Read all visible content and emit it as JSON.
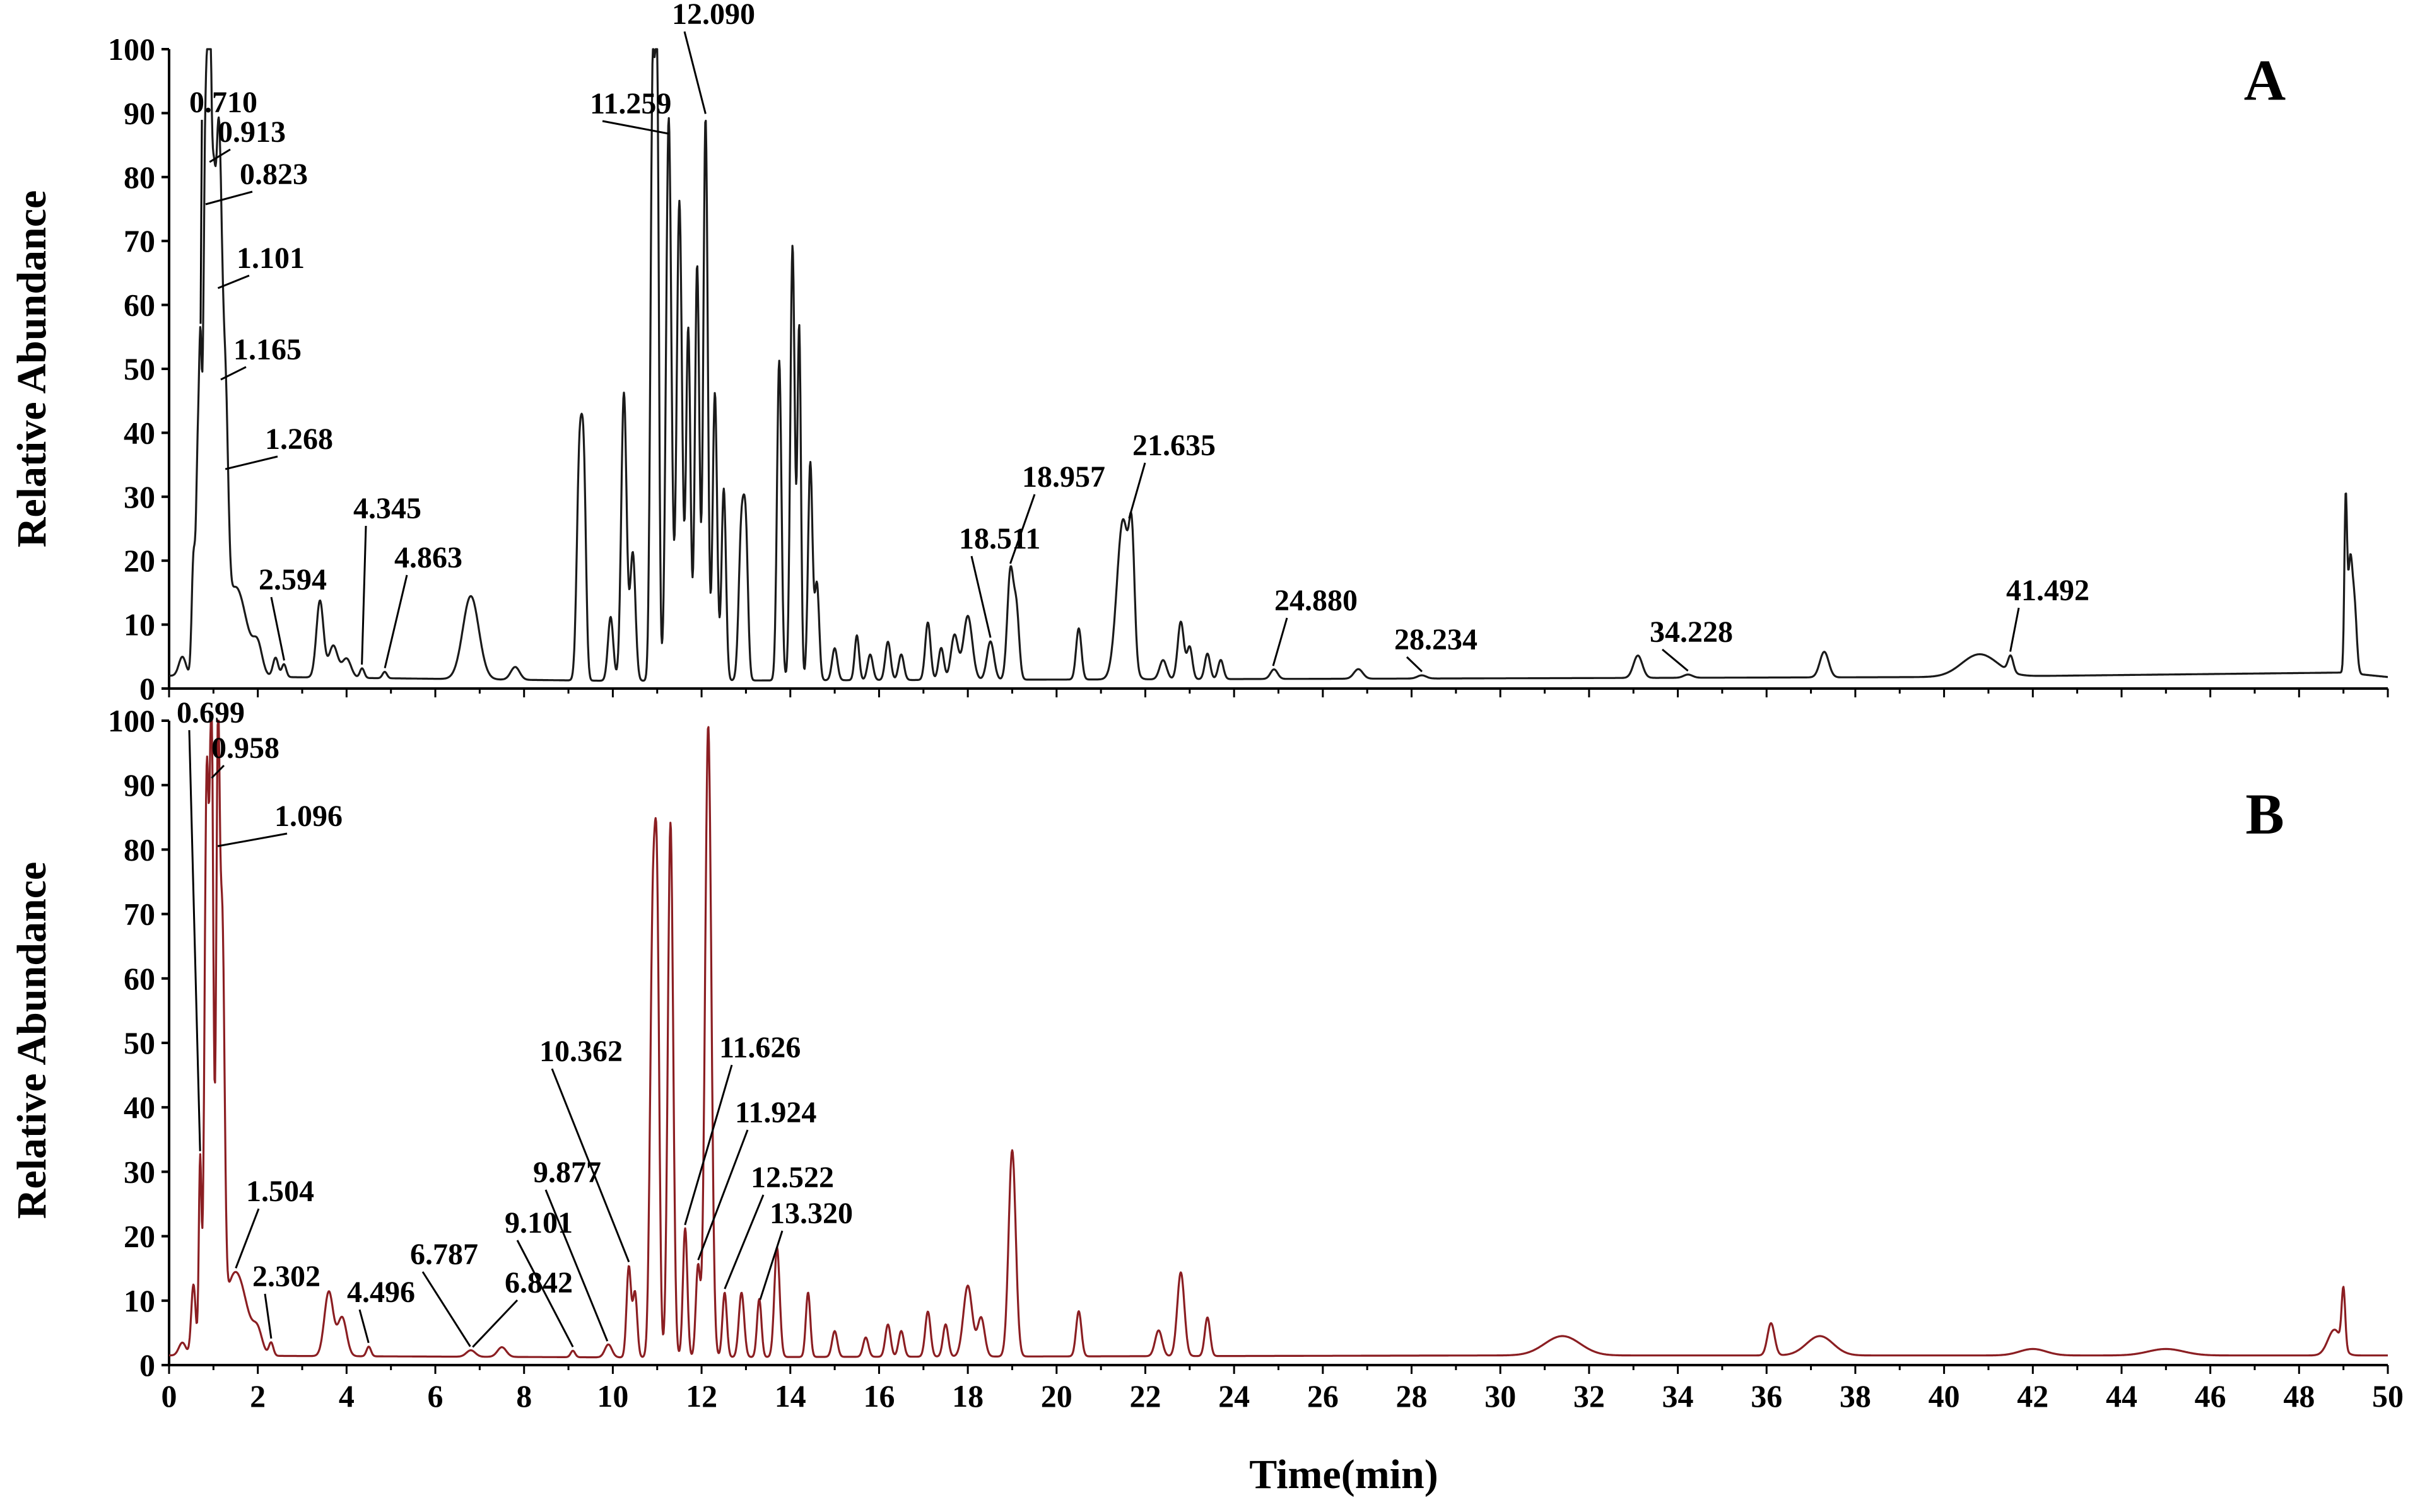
{
  "chart_data": {
    "type": "line",
    "xlabel": "Time(min)",
    "xlim": [
      0,
      50
    ],
    "xticks": [
      0,
      2,
      4,
      6,
      8,
      10,
      12,
      14,
      16,
      18,
      20,
      22,
      24,
      26,
      28,
      30,
      32,
      34,
      36,
      38,
      40,
      42,
      44,
      46,
      48,
      50
    ],
    "panels": [
      {
        "label": "A",
        "ylabel": "Relative Abundance",
        "ylim": [
          0,
          100
        ],
        "yticks": [
          0,
          10,
          20,
          30,
          40,
          50,
          60,
          70,
          80,
          90,
          100
        ],
        "color": "#1a1a1a",
        "baseline": [
          [
            0,
            2
          ],
          [
            10,
            1.2
          ],
          [
            25,
            1.5
          ],
          [
            40,
            1.8
          ],
          [
            49,
            2.5
          ],
          [
            50,
            1.8
          ]
        ],
        "peaks": [
          [
            0.3,
            3,
            0.08
          ],
          [
            0.55,
            18,
            0.04
          ],
          [
            0.65,
            34,
            0.04
          ],
          [
            0.71,
            36,
            0.03
          ],
          [
            0.82,
            83,
            0.05
          ],
          [
            0.91,
            85,
            0.04
          ],
          [
            1.0,
            65,
            0.05
          ],
          [
            1.1,
            58,
            0.05
          ],
          [
            1.17,
            40,
            0.05
          ],
          [
            1.27,
            35,
            0.06
          ],
          [
            1.5,
            14,
            0.25
          ],
          [
            2.0,
            4,
            0.1
          ],
          [
            2.4,
            3,
            0.06
          ],
          [
            2.59,
            2,
            0.05
          ],
          [
            3.4,
            12,
            0.08
          ],
          [
            3.7,
            5,
            0.1
          ],
          [
            4.0,
            3,
            0.1
          ],
          [
            4.35,
            1.5,
            0.05
          ],
          [
            4.86,
            1,
            0.05
          ],
          [
            6.8,
            13,
            0.18
          ],
          [
            7.8,
            2,
            0.1
          ],
          [
            9.25,
            35,
            0.06
          ],
          [
            9.35,
            28,
            0.05
          ],
          [
            9.95,
            10,
            0.06
          ],
          [
            10.25,
            45,
            0.06
          ],
          [
            10.45,
            20,
            0.06
          ],
          [
            10.9,
            95,
            0.05
          ],
          [
            11.0,
            88,
            0.04
          ],
          [
            11.26,
            88,
            0.06
          ],
          [
            11.5,
            75,
            0.06
          ],
          [
            11.7,
            55,
            0.05
          ],
          [
            11.9,
            65,
            0.05
          ],
          [
            12.09,
            88,
            0.05
          ],
          [
            12.3,
            45,
            0.05
          ],
          [
            12.5,
            30,
            0.05
          ],
          [
            12.9,
            24,
            0.06
          ],
          [
            13.0,
            20,
            0.05
          ],
          [
            13.75,
            50,
            0.05
          ],
          [
            14.05,
            68,
            0.05
          ],
          [
            14.2,
            55,
            0.04
          ],
          [
            14.45,
            34,
            0.05
          ],
          [
            14.6,
            15,
            0.05
          ],
          [
            15.0,
            5,
            0.06
          ],
          [
            15.5,
            7,
            0.05
          ],
          [
            15.8,
            4,
            0.06
          ],
          [
            16.2,
            6,
            0.06
          ],
          [
            16.5,
            4,
            0.06
          ],
          [
            17.1,
            9,
            0.06
          ],
          [
            17.4,
            5,
            0.06
          ],
          [
            17.7,
            7,
            0.08
          ],
          [
            18.0,
            10,
            0.1
          ],
          [
            18.51,
            6,
            0.08
          ],
          [
            18.96,
            17,
            0.07
          ],
          [
            19.1,
            10,
            0.06
          ],
          [
            20.5,
            8,
            0.06
          ],
          [
            21.5,
            25,
            0.14
          ],
          [
            21.7,
            16,
            0.06
          ],
          [
            22.4,
            3,
            0.08
          ],
          [
            22.8,
            9,
            0.07
          ],
          [
            23.0,
            5,
            0.06
          ],
          [
            23.4,
            4,
            0.06
          ],
          [
            23.7,
            3,
            0.06
          ],
          [
            24.9,
            1.5,
            0.08
          ],
          [
            26.8,
            1.5,
            0.1
          ],
          [
            28.23,
            0.5,
            0.1
          ],
          [
            33.1,
            3.5,
            0.1
          ],
          [
            34.23,
            0.5,
            0.1
          ],
          [
            37.3,
            4,
            0.1
          ],
          [
            40.8,
            3.5,
            0.4
          ],
          [
            41.5,
            2.5,
            0.06
          ],
          [
            49.05,
            26,
            0.03
          ],
          [
            49.15,
            17,
            0.05
          ],
          [
            49.25,
            10,
            0.05
          ]
        ],
        "annotations": [
          {
            "text": "0.710",
            "x": 0.71
          },
          {
            "text": "0.913",
            "x": 0.913
          },
          {
            "text": "0.823",
            "x": 0.823
          },
          {
            "text": "1.101",
            "x": 1.101
          },
          {
            "text": "1.165",
            "x": 1.165
          },
          {
            "text": "1.268",
            "x": 1.268
          },
          {
            "text": "2.594",
            "x": 2.594
          },
          {
            "text": "4.345",
            "x": 4.345
          },
          {
            "text": "4.863",
            "x": 4.863
          },
          {
            "text": "11.259",
            "x": 11.259
          },
          {
            "text": "12.090",
            "x": 12.09
          },
          {
            "text": "18.511",
            "x": 18.511
          },
          {
            "text": "18.957",
            "x": 18.957
          },
          {
            "text": "21.635",
            "x": 21.635
          },
          {
            "text": "24.880",
            "x": 24.88
          },
          {
            "text": "28.234",
            "x": 28.234
          },
          {
            "text": "34.228",
            "x": 34.228
          },
          {
            "text": "41.492",
            "x": 41.492
          }
        ]
      },
      {
        "label": "B",
        "ylabel": "Relative Abundance",
        "ylim": [
          0,
          100
        ],
        "yticks": [
          0,
          10,
          20,
          30,
          40,
          50,
          60,
          70,
          80,
          90,
          100
        ],
        "color": "#8b1e22",
        "baseline": [
          [
            0,
            1.5
          ],
          [
            10,
            1.2
          ],
          [
            30,
            1.5
          ],
          [
            50,
            1.5
          ]
        ],
        "peaks": [
          [
            0.3,
            2,
            0.08
          ],
          [
            0.55,
            11,
            0.05
          ],
          [
            0.7,
            30,
            0.03
          ],
          [
            0.85,
            90,
            0.05
          ],
          [
            0.96,
            93,
            0.04
          ],
          [
            1.1,
            88,
            0.04
          ],
          [
            1.2,
            60,
            0.05
          ],
          [
            1.5,
            13,
            0.25
          ],
          [
            2.0,
            3,
            0.1
          ],
          [
            2.3,
            2,
            0.05
          ],
          [
            3.6,
            10,
            0.1
          ],
          [
            3.9,
            6,
            0.1
          ],
          [
            4.5,
            1.5,
            0.05
          ],
          [
            6.8,
            1,
            0.1
          ],
          [
            7.5,
            1.5,
            0.1
          ],
          [
            9.1,
            1,
            0.05
          ],
          [
            9.9,
            2,
            0.08
          ],
          [
            10.36,
            14,
            0.05
          ],
          [
            10.5,
            10,
            0.05
          ],
          [
            10.9,
            66,
            0.06
          ],
          [
            11.0,
            60,
            0.05
          ],
          [
            11.3,
            83,
            0.06
          ],
          [
            11.63,
            20,
            0.05
          ],
          [
            11.92,
            14,
            0.05
          ],
          [
            12.15,
            98,
            0.07
          ],
          [
            12.52,
            10,
            0.05
          ],
          [
            12.9,
            10,
            0.06
          ],
          [
            13.3,
            9,
            0.05
          ],
          [
            13.7,
            17,
            0.06
          ],
          [
            14.4,
            10,
            0.05
          ],
          [
            15.0,
            4,
            0.06
          ],
          [
            15.7,
            3,
            0.06
          ],
          [
            16.2,
            5,
            0.06
          ],
          [
            16.5,
            4,
            0.06
          ],
          [
            17.1,
            7,
            0.06
          ],
          [
            17.5,
            5,
            0.06
          ],
          [
            18.0,
            11,
            0.1
          ],
          [
            18.3,
            6,
            0.08
          ],
          [
            19.0,
            32,
            0.08
          ],
          [
            20.5,
            7,
            0.06
          ],
          [
            22.3,
            4,
            0.08
          ],
          [
            22.8,
            13,
            0.08
          ],
          [
            23.4,
            6,
            0.06
          ],
          [
            31.4,
            3,
            0.4
          ],
          [
            36.1,
            5,
            0.08
          ],
          [
            37.2,
            3,
            0.3
          ],
          [
            42.0,
            1,
            0.3
          ],
          [
            45.0,
            1,
            0.4
          ],
          [
            48.8,
            4,
            0.15
          ],
          [
            49.0,
            9,
            0.04
          ]
        ],
        "annotations": [
          {
            "text": "0.699",
            "x": 0.699
          },
          {
            "text": "0.958",
            "x": 0.958
          },
          {
            "text": "1.096",
            "x": 1.096
          },
          {
            "text": "1.504",
            "x": 1.504
          },
          {
            "text": "2.302",
            "x": 2.302
          },
          {
            "text": "4.496",
            "x": 4.496
          },
          {
            "text": "6.787",
            "x": 6.787
          },
          {
            "text": "6.842",
            "x": 6.842
          },
          {
            "text": "9.101",
            "x": 9.101
          },
          {
            "text": "9.877",
            "x": 9.877
          },
          {
            "text": "10.362",
            "x": 10.362
          },
          {
            "text": "11.626",
            "x": 11.626
          },
          {
            "text": "11.924",
            "x": 11.924
          },
          {
            "text": "12.522",
            "x": 12.522
          },
          {
            "text": "13.320",
            "x": 13.32
          }
        ]
      }
    ]
  }
}
